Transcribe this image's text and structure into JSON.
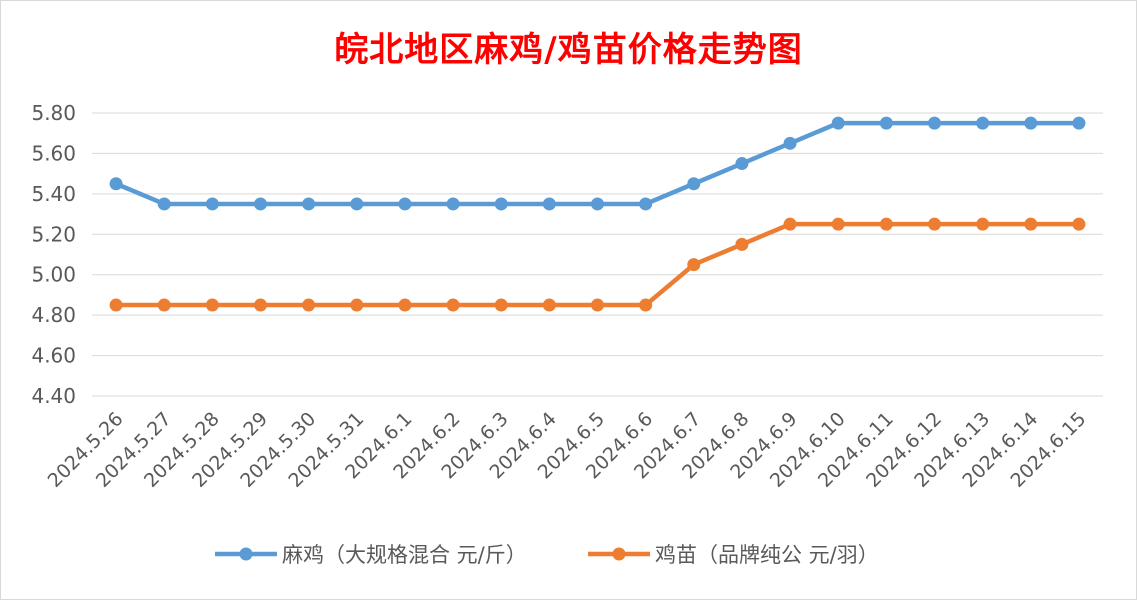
{
  "chart_data": {
    "type": "line",
    "title": "皖北地区麻鸡/鸡苗价格走势图",
    "categories": [
      "2024.5.26",
      "2024.5.27",
      "2024.5.28",
      "2024.5.29",
      "2024.5.30",
      "2024.5.31",
      "2024.6.1",
      "2024.6.2",
      "2024.6.3",
      "2024.6.4",
      "2024.6.5",
      "2024.6.6",
      "2024.6.7",
      "2024.6.8",
      "2024.6.9",
      "2024.6.10",
      "2024.6.11",
      "2024.6.12",
      "2024.6.13",
      "2024.6.14",
      "2024.6.15"
    ],
    "series": [
      {
        "name": "麻鸡（大规格混合 元/斤）",
        "color": "#5b9bd5",
        "values": [
          5.45,
          5.35,
          5.35,
          5.35,
          5.35,
          5.35,
          5.35,
          5.35,
          5.35,
          5.35,
          5.35,
          5.35,
          5.45,
          5.55,
          5.65,
          5.75,
          5.75,
          5.75,
          5.75,
          5.75,
          5.75
        ]
      },
      {
        "name": "鸡苗（品牌纯公 元/羽）",
        "color": "#ed7d31",
        "values": [
          4.85,
          4.85,
          4.85,
          4.85,
          4.85,
          4.85,
          4.85,
          4.85,
          4.85,
          4.85,
          4.85,
          4.85,
          5.05,
          5.15,
          5.25,
          5.25,
          5.25,
          5.25,
          5.25,
          5.25,
          5.25
        ]
      }
    ],
    "ylim": [
      4.4,
      5.8
    ],
    "yticks": [
      "4.40",
      "4.60",
      "4.80",
      "5.00",
      "5.20",
      "5.40",
      "5.60",
      "5.80"
    ],
    "grid": true,
    "legend": "bottom"
  }
}
